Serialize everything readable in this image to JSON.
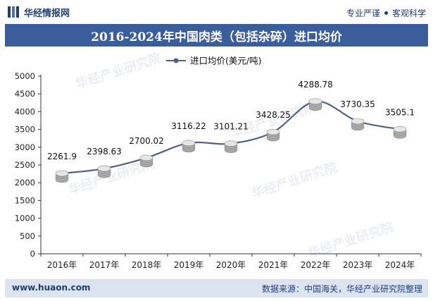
{
  "header": {
    "brand": "华经情报网",
    "tagline_left": "专业严谨",
    "tagline_right": "客观科学"
  },
  "footer": {
    "website": "www.huaon.com",
    "source": "数据来源：中国海关，华经产业研究院整理"
  },
  "watermark": "华经产业研究院",
  "colors": {
    "title_bg": "#3a5d9c",
    "line": "#4f6283",
    "footer_bg": "#dce4f2",
    "brand": "#1f3d7a"
  },
  "chart_data": {
    "type": "line",
    "title": "2016-2024年中国肉类（包括杂碎）进口均价",
    "xlabel": "",
    "ylabel": "",
    "categories": [
      "2016年",
      "2017年",
      "2018年",
      "2019年",
      "2020年",
      "2021年",
      "2022年",
      "2023年",
      "2024年"
    ],
    "series": [
      {
        "name": "进口均价(美元/吨)",
        "values": [
          2261.9,
          2398.63,
          2700.02,
          3116.22,
          3101.21,
          3428.25,
          4288.78,
          3730.35,
          3505.1
        ],
        "labels": [
          "2261.9",
          "2398.63",
          "2700.02",
          "3116.22",
          "3101.21",
          "3428.25",
          "4288.78",
          "3730.35",
          "3505.1"
        ]
      }
    ],
    "ylim": [
      0,
      5000
    ],
    "yticks": [
      0,
      500,
      1000,
      1500,
      2000,
      2500,
      3000,
      3500,
      4000,
      4500,
      5000
    ],
    "legend_position": "top-center",
    "grid": false
  }
}
